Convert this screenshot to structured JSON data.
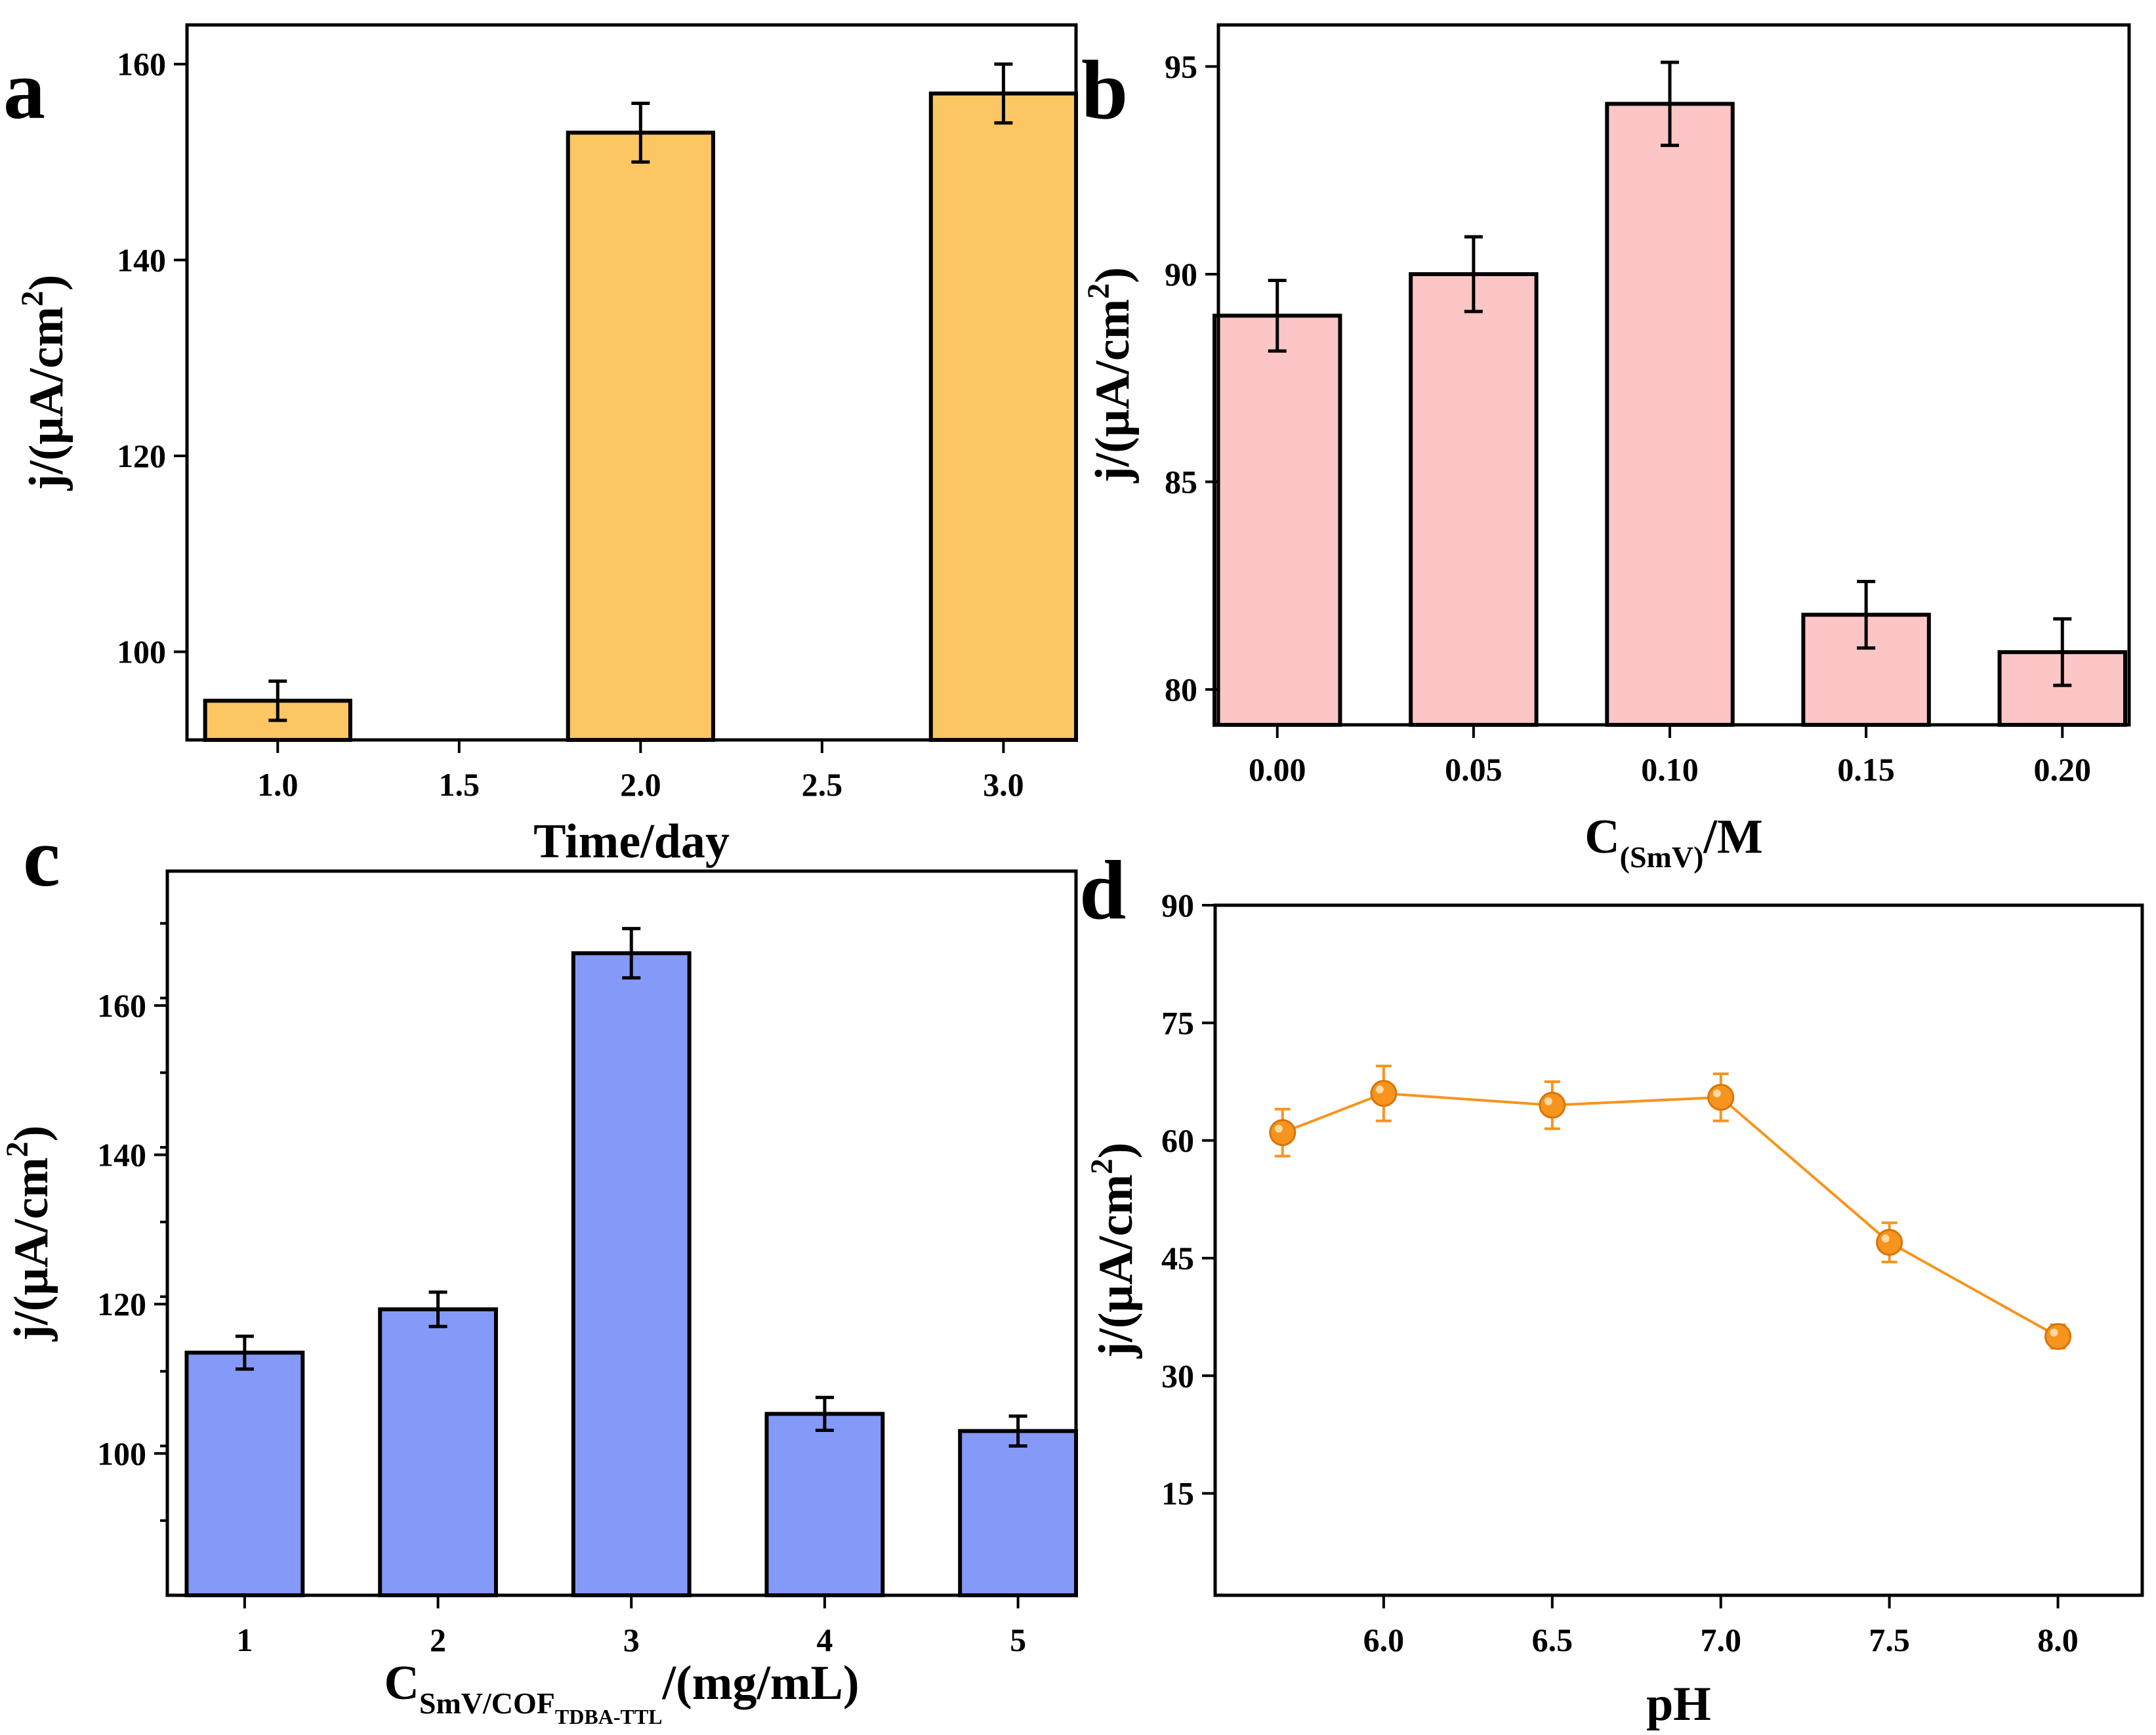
{
  "chart_data": [
    {
      "panel": "a",
      "type": "bar",
      "x": [
        1.0,
        2.0,
        3.0
      ],
      "values": [
        95,
        153,
        157
      ],
      "errors": [
        2,
        3,
        3
      ],
      "color": "#FCC662",
      "xlabel": "Time/day",
      "ylabel": "j/(μA/cm",
      "ylabel_sup": "2",
      "ylabel_close": ")",
      "xlim": [
        0.75,
        3.2
      ],
      "ylim": [
        91,
        164
      ],
      "xticks": [
        1.0,
        1.5,
        2.0,
        2.5,
        3.0
      ],
      "xtick_labels": [
        "1.0",
        "1.5",
        "2.0",
        "2.5",
        "3.0"
      ],
      "yticks": [
        100,
        120,
        140,
        160
      ],
      "ytick_labels": [
        "100",
        "120",
        "140",
        "160"
      ]
    },
    {
      "panel": "b",
      "type": "bar",
      "x": [
        0.0,
        0.05,
        0.1,
        0.15,
        0.2
      ],
      "values": [
        89,
        90,
        94.1,
        81.8,
        80.9
      ],
      "errors": [
        0.85,
        0.9,
        1.0,
        0.8,
        0.8
      ],
      "color": "#FCC6C6",
      "xlabel": "C",
      "xlabel_sub": "(SmV)",
      "xlabel_tail": "/M",
      "ylabel": "j/(μA/cm",
      "ylabel_sup": "2",
      "ylabel_close": ")",
      "xlim": [
        -0.015,
        0.217
      ],
      "ylim": [
        79.15,
        96.0
      ],
      "xticks": [
        0.0,
        0.05,
        0.1,
        0.15,
        0.2
      ],
      "xtick_labels": [
        "0.00",
        "0.05",
        "0.10",
        "0.15",
        "0.20"
      ],
      "yticks": [
        80,
        85,
        90,
        95
      ],
      "ytick_labels": [
        "80",
        "85",
        "90",
        "95"
      ]
    },
    {
      "panel": "c",
      "type": "bar",
      "x": [
        1,
        2,
        3,
        4,
        5
      ],
      "values": [
        113.5,
        119.3,
        167.0,
        105.3,
        103.0
      ],
      "errors": [
        2.2,
        2.3,
        3.3,
        2.2,
        2.0
      ],
      "color": "#8599F8",
      "xlabel": "C",
      "xlabel_sub": "SmV/COF",
      "xlabel_subsub": "TDBA-TTL",
      "xlabel_tail": "/(mg/mL)",
      "ylabel": "j/(μA/cm",
      "ylabel_sup": "2",
      "ylabel_close": ")",
      "xlim": [
        0.6,
        5.3
      ],
      "ylim": [
        81,
        178
      ],
      "xticks": [
        1,
        2,
        3,
        4,
        5
      ],
      "xtick_labels": [
        "1",
        "2",
        "3",
        "4",
        "5"
      ],
      "yticks": [
        100,
        120,
        140,
        160
      ],
      "ytick_labels": [
        "100",
        "120",
        "140",
        "160"
      ]
    },
    {
      "panel": "d",
      "type": "line",
      "x": [
        5.7,
        6.0,
        6.5,
        7.0,
        7.5,
        8.0
      ],
      "values": [
        61,
        66,
        64.5,
        65.5,
        47,
        35
      ],
      "errors": [
        3,
        3.5,
        3,
        3,
        2.5,
        1.5
      ],
      "color": "#F7941D",
      "xlabel": "pH",
      "ylabel": "j/(μA/cm",
      "ylabel_sup": "2",
      "ylabel_close": ")",
      "xlim": [
        5.5,
        8.25
      ],
      "ylim": [
        2,
        90
      ],
      "xticks": [
        6.0,
        6.5,
        7.0,
        7.5,
        8.0
      ],
      "xtick_labels": [
        "6.0",
        "6.5",
        "7.0",
        "7.5",
        "8.0"
      ],
      "yticks": [
        15,
        30,
        45,
        60,
        75,
        90
      ],
      "ytick_labels": [
        "15",
        "30",
        "45",
        "60",
        "75",
        "90"
      ]
    }
  ]
}
